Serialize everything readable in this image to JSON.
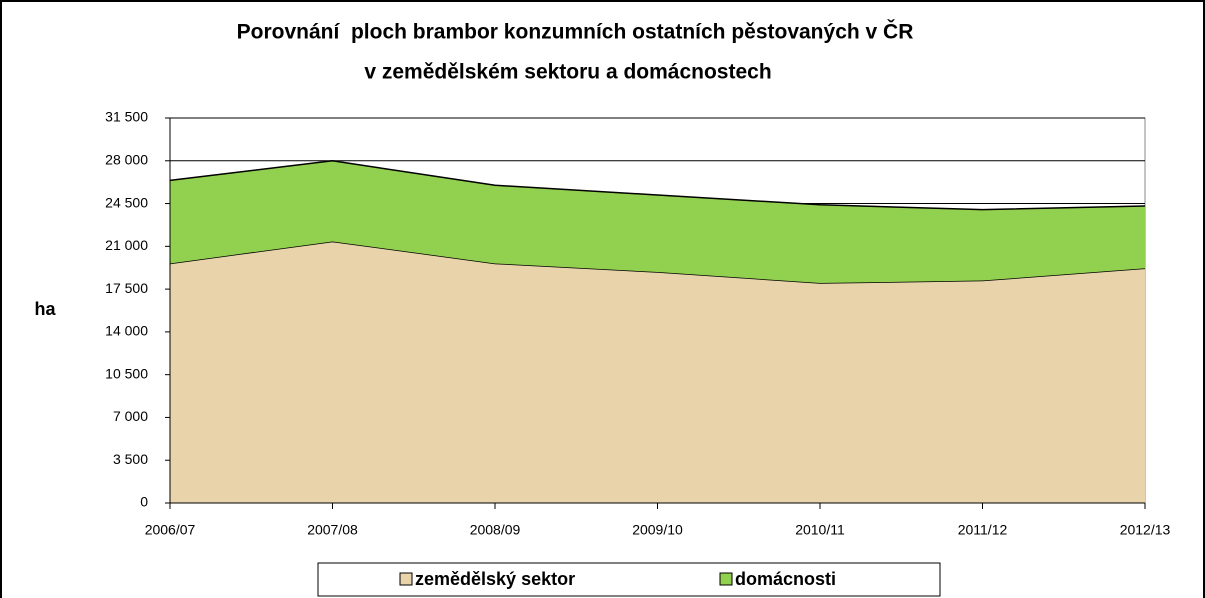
{
  "chart_data": {
    "type": "stacked-area",
    "title": [
      "Porovnání  ploch brambor konzumních ostatních pěstovaných v ČR",
      "v zemědělském sektoru a domácnostech"
    ],
    "ylabel": "ha",
    "categories": [
      "2006/07",
      "2007/08",
      "2008/09",
      "2009/10",
      "2010/11",
      "2011/12",
      "2012/13"
    ],
    "series": [
      {
        "name": "zemědělský sektor",
        "color": "#e8d3aa",
        "values": [
          19600,
          21400,
          19600,
          18900,
          18000,
          18200,
          19200
        ]
      },
      {
        "name": "domácnosti",
        "color": "#92d050",
        "values": [
          6800,
          6600,
          6400,
          6300,
          6400,
          5800,
          5100
        ]
      }
    ],
    "ylim": [
      0,
      31500
    ],
    "yticks": [
      0,
      {
        "value": 3500,
        "label": "3 500"
      },
      {
        "value": 7000,
        "label": "7 000"
      },
      {
        "value": 10500,
        "label": "10 500"
      },
      {
        "value": 14000,
        "label": "14 000"
      },
      {
        "value": 17500,
        "label": "17 500"
      },
      {
        "value": 21000,
        "label": "21 000"
      },
      {
        "value": 24500,
        "label": "24 500"
      },
      {
        "value": 28000,
        "label": "28 000"
      },
      {
        "value": 31500,
        "label": "31 500"
      }
    ],
    "grid": true,
    "legend": "bottom"
  }
}
